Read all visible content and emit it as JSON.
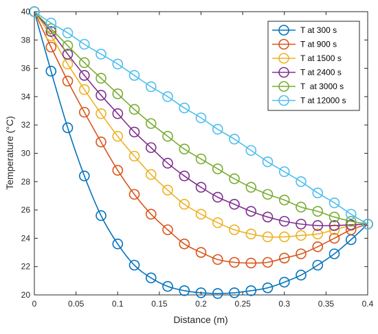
{
  "chart_data": {
    "type": "line",
    "title": "",
    "xlabel": "Distance (m)",
    "ylabel": "Temperature (°C)",
    "xlim": [
      0,
      0.4
    ],
    "ylim": [
      20,
      40
    ],
    "x_ticks": [
      0,
      0.05,
      0.1,
      0.15,
      0.2,
      0.25,
      0.3,
      0.35,
      0.4
    ],
    "x_tick_labels": [
      "0",
      "0.05",
      "0.1",
      "0.15",
      "0.2",
      "0.25",
      "0.3",
      "0.35",
      "0.4"
    ],
    "y_ticks": [
      20,
      22,
      24,
      26,
      28,
      30,
      32,
      34,
      36,
      38,
      40
    ],
    "y_tick_labels": [
      "20",
      "22",
      "24",
      "26",
      "28",
      "30",
      "32",
      "34",
      "36",
      "38",
      "40"
    ],
    "grid": false,
    "legend_position": "top-right",
    "x": [
      0,
      0.02,
      0.04,
      0.06,
      0.08,
      0.1,
      0.12,
      0.14,
      0.16,
      0.18,
      0.2,
      0.22,
      0.24,
      0.26,
      0.28,
      0.3,
      0.32,
      0.34,
      0.36,
      0.38,
      0.4
    ],
    "series": [
      {
        "name": "T at 300 s",
        "color": "#0072BD",
        "values": [
          40,
          35.8,
          31.8,
          28.4,
          25.6,
          23.6,
          22.1,
          21.2,
          20.6,
          20.3,
          20.15,
          20.1,
          20.15,
          20.3,
          20.5,
          20.9,
          21.4,
          22.1,
          22.9,
          23.9,
          25
        ]
      },
      {
        "name": "T at 900 s",
        "color": "#D95319",
        "values": [
          40,
          37.5,
          35.1,
          32.9,
          30.8,
          28.8,
          27.1,
          25.7,
          24.6,
          23.6,
          23.0,
          22.5,
          22.3,
          22.25,
          22.3,
          22.6,
          22.9,
          23.4,
          24.0,
          24.6,
          25
        ]
      },
      {
        "name": "T at 1500 s",
        "color": "#EDB120",
        "values": [
          40,
          38.3,
          36.3,
          34.5,
          32.8,
          31.2,
          29.8,
          28.5,
          27.4,
          26.4,
          25.7,
          25.1,
          24.6,
          24.3,
          24.1,
          24.1,
          24.2,
          24.3,
          24.6,
          24.9,
          25
        ]
      },
      {
        "name": "T at 2400 s",
        "color": "#7E2F8E",
        "values": [
          40,
          38.6,
          37.0,
          35.5,
          34.1,
          32.8,
          31.5,
          30.4,
          29.3,
          28.4,
          27.6,
          26.9,
          26.4,
          25.9,
          25.5,
          25.2,
          25.0,
          24.9,
          24.9,
          24.95,
          25
        ]
      },
      {
        "name": "T  at 3000 s",
        "color": "#77AC30",
        "values": [
          40,
          38.8,
          37.6,
          36.4,
          35.3,
          34.2,
          33.1,
          32.1,
          31.2,
          30.3,
          29.6,
          28.9,
          28.2,
          27.6,
          27.1,
          26.7,
          26.2,
          25.9,
          25.5,
          25.2,
          25
        ]
      },
      {
        "name": "T at 12000 s",
        "color": "#4DBEEE",
        "values": [
          40,
          39.2,
          38.5,
          37.7,
          37.0,
          36.3,
          35.5,
          34.7,
          34.0,
          33.2,
          32.5,
          31.7,
          31.0,
          30.2,
          29.4,
          28.7,
          28.0,
          27.2,
          26.5,
          25.7,
          25
        ]
      }
    ]
  }
}
